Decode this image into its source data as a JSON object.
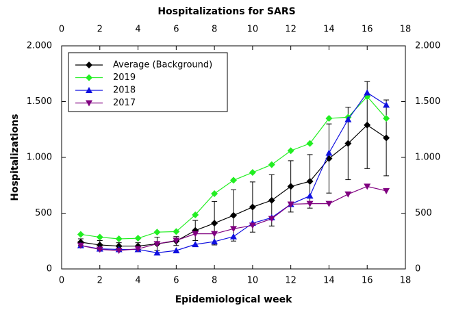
{
  "chart_data": {
    "type": "line",
    "title": "Hospitalizations for SARS",
    "xlabel": "Epidemiological week",
    "ylabel": "Hospitalizations",
    "x": [
      1,
      2,
      3,
      4,
      5,
      6,
      7,
      8,
      9,
      10,
      11,
      12,
      13,
      14,
      15,
      16,
      17
    ],
    "xlim": [
      0,
      18
    ],
    "xticks": [
      0,
      2,
      4,
      6,
      8,
      10,
      12,
      14,
      16,
      18
    ],
    "ylim": [
      0,
      2000
    ],
    "yticks": [
      0,
      500,
      {
        "value": 1000,
        "label": "1.000"
      },
      {
        "value": 1500,
        "label": "1.500"
      },
      {
        "value": 2000,
        "label": "2.000"
      }
    ],
    "legend": "upper left",
    "series": [
      {
        "name": "Average (Background)",
        "color": "#000000",
        "marker": "diamond",
        "values": [
          240,
          215,
          205,
          205,
          225,
          250,
          345,
          410,
          480,
          555,
          615,
          740,
          785,
          990,
          1125,
          1290,
          1175
        ],
        "errors": [
          30,
          40,
          30,
          30,
          60,
          40,
          90,
          195,
          230,
          225,
          230,
          230,
          240,
          310,
          325,
          390,
          340
        ]
      },
      {
        "name": "2019",
        "color": "#22ee22",
        "marker": "diamond",
        "values": [
          310,
          285,
          270,
          275,
          330,
          335,
          485,
          675,
          795,
          865,
          935,
          1060,
          1125,
          1350,
          1360,
          1545,
          1350
        ]
      },
      {
        "name": "2018",
        "color": "#1010e0",
        "marker": "triangle-up",
        "values": [
          210,
          180,
          175,
          175,
          145,
          165,
          220,
          245,
          290,
          410,
          460,
          580,
          655,
          1040,
          1340,
          1580,
          1470
        ]
      },
      {
        "name": "2017",
        "color": "#800080",
        "marker": "triangle-down",
        "values": [
          210,
          175,
          165,
          180,
          225,
          255,
          315,
          315,
          360,
          390,
          450,
          580,
          585,
          585,
          670,
          740,
          700
        ]
      }
    ]
  }
}
